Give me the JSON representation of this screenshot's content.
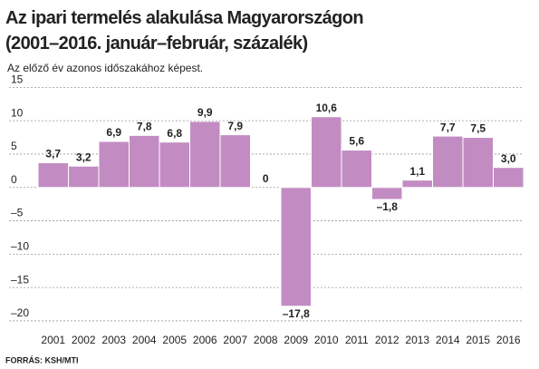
{
  "chart_data": {
    "type": "bar",
    "title": "Az ipari termelés alakulása Magyarországon",
    "title_line2": "(2001–2016. január–február, százalék)",
    "subtitle": "Az előző év azonos időszakához képest.",
    "source": "FORRÁS: KSH/MTI",
    "categories": [
      "2001",
      "2002",
      "2003",
      "2004",
      "2005",
      "2006",
      "2007",
      "2008",
      "2009",
      "2010",
      "2011",
      "2012",
      "2013",
      "2014",
      "2015",
      "2016"
    ],
    "values": [
      3.7,
      3.2,
      6.9,
      7.8,
      6.8,
      9.9,
      7.9,
      0,
      -17.8,
      10.6,
      5.6,
      -1.8,
      1.1,
      7.7,
      7.5,
      3.0
    ],
    "value_labels": [
      "3,7",
      "3,2",
      "6,9",
      "7,8",
      "6,8",
      "9,9",
      "7,9",
      "0",
      "–17,8",
      "10,6",
      "5,6",
      "–1,8",
      "1,1",
      "7,7",
      "7,5",
      "3,0"
    ],
    "color": "#c28cc3",
    "ylim": [
      -21.5,
      16
    ],
    "yticks": [
      15,
      10,
      5,
      0,
      {
        "value": -5,
        "label": "–5"
      },
      {
        "value": -10,
        "label": "–10"
      },
      {
        "value": -15,
        "label": "–15"
      },
      {
        "value": -20,
        "label": "–20"
      }
    ],
    "grid": true
  }
}
